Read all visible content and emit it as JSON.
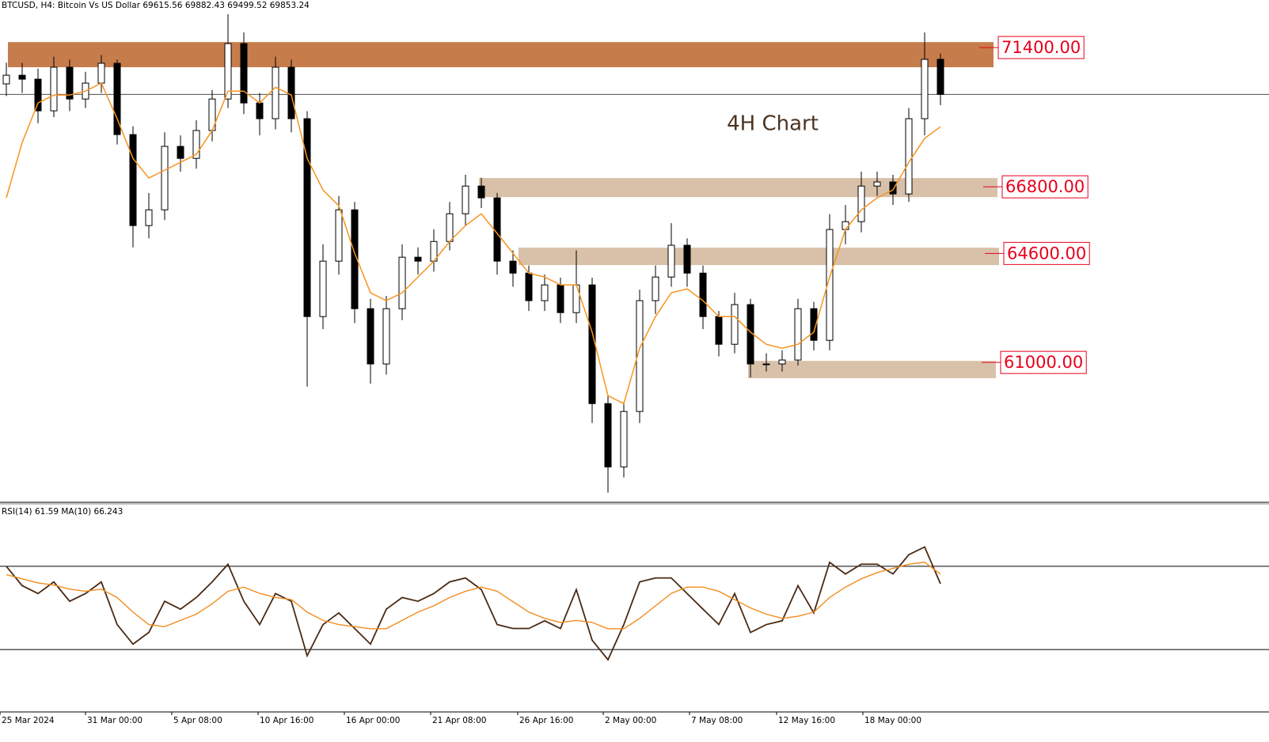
{
  "chart_data": {
    "type": "candlestick",
    "title": "BTCUSD, H4:",
    "subtitle": "Bitcoin Vs US Dollar",
    "quote": [
      69615.56,
      69882.43,
      69499.52,
      69853.24
    ],
    "annotation": "4H Chart",
    "ylim": [
      56380,
      72970
    ],
    "open": [
      70200,
      70485,
      70355,
      69310,
      70750,
      69700,
      70225,
      70880,
      68525,
      65520,
      66040,
      68135,
      67740,
      68660,
      69700,
      71530,
      69570,
      69050,
      70750,
      69050,
      62515,
      64345,
      66040,
      62775,
      60950,
      62775,
      64475,
      64345,
      64995,
      65910,
      66825,
      66435,
      64345,
      63950,
      63040,
      63560,
      62645,
      63560,
      59640,
      57550,
      59380,
      63040,
      63820,
      64870,
      63950,
      62515,
      61600,
      62910,
      60950,
      60950,
      61080,
      62775,
      61730,
      65390,
      65650,
      66825,
      66960,
      66565,
      69050,
      71010
    ],
    "high": [
      70900,
      70900,
      70700,
      71100,
      71000,
      70600,
      71150,
      71000,
      68800,
      66600,
      68600,
      68500,
      69000,
      70000,
      72500,
      71900,
      69900,
      71100,
      71000,
      69300,
      64900,
      66500,
      66300,
      63100,
      63200,
      64900,
      64800,
      65400,
      66300,
      67200,
      67100,
      66600,
      64700,
      64200,
      63900,
      63800,
      64700,
      63800,
      59900,
      59700,
      63400,
      64200,
      65600,
      65100,
      64200,
      62700,
      63300,
      63100,
      61300,
      61400,
      63100,
      63000,
      65900,
      66200,
      67300,
      67300,
      67200,
      69400,
      71900,
      71200
    ],
    "low": [
      69800,
      69900,
      68900,
      69100,
      69300,
      69400,
      69900,
      68200,
      64800,
      65100,
      65700,
      67300,
      67400,
      68300,
      69400,
      69200,
      68500,
      68700,
      68600,
      60200,
      62100,
      63900,
      62300,
      60300,
      60600,
      62400,
      63900,
      64000,
      64700,
      65500,
      66100,
      63900,
      63500,
      62700,
      62700,
      62300,
      62300,
      59000,
      56700,
      57200,
      59000,
      62600,
      63500,
      63500,
      62100,
      61200,
      61300,
      60500,
      60700,
      60700,
      60900,
      61400,
      61400,
      64900,
      65300,
      66500,
      66200,
      66300,
      68500,
      69500
    ],
    "close": [
      70485,
      70355,
      69310,
      70750,
      69700,
      70225,
      70880,
      68525,
      65520,
      66040,
      68135,
      67740,
      68660,
      69700,
      71530,
      69570,
      69050,
      70750,
      69050,
      62515,
      64345,
      66040,
      62775,
      60950,
      62775,
      64475,
      64345,
      64995,
      65910,
      66825,
      66435,
      64345,
      63950,
      63040,
      63560,
      62645,
      63560,
      59640,
      57550,
      59380,
      63040,
      63820,
      64870,
      63950,
      62515,
      61600,
      62910,
      60950,
      60950,
      61080,
      62775,
      61730,
      65390,
      65650,
      66825,
      66960,
      66565,
      69050,
      71010,
      69853
    ],
    "ma": {
      "color": "#f7931e",
      "values": [
        66435,
        68265,
        69570,
        69830,
        69830,
        69960,
        70225,
        69050,
        67740,
        67090,
        67350,
        67610,
        67870,
        68660,
        69960,
        69960,
        69570,
        70090,
        69830,
        67740,
        66695,
        66175,
        64605,
        63300,
        63040,
        63300,
        63820,
        64345,
        64995,
        65520,
        65910,
        65260,
        64605,
        63950,
        63820,
        63560,
        63560,
        62000,
        59900,
        59640,
        61470,
        62515,
        63300,
        63430,
        63040,
        62515,
        62515,
        62000,
        61600,
        61470,
        61600,
        62000,
        63820,
        65390,
        66040,
        66435,
        66695,
        67610,
        68400,
        68785
      ]
    },
    "zones": [
      {
        "level": {
          "value": 71400,
          "label": "71400.00"
        },
        "top": 71580,
        "bottom": 70750,
        "color": "#c67c4b"
      },
      {
        "level": {
          "value": 66800,
          "label": "66800.00"
        },
        "top": 67090,
        "bottom": 66460,
        "color": "#d8c1a8"
      },
      {
        "level": {
          "value": 64600,
          "label": "64600.00"
        },
        "top": 64790,
        "bottom": 64215,
        "color": "#d8c1a8"
      },
      {
        "level": {
          "value": 61000,
          "label": "61000.00"
        },
        "top": 61050,
        "bottom": 60480,
        "color": "#d8c1a8"
      }
    ],
    "xticks": [
      {
        "value": -0.4,
        "label": "25 Mar 2024"
      },
      {
        "value": 5,
        "label": "31 Mar 00:00"
      },
      {
        "value": 10.45,
        "label": "5 Apr 08:00"
      },
      {
        "value": 15.9,
        "label": "10 Apr 16:00"
      },
      {
        "value": 21.35,
        "label": "16 Apr 00:00"
      },
      {
        "value": 26.8,
        "label": "21 Apr 08:00"
      },
      {
        "value": 32.3,
        "label": "26 Apr 16:00"
      },
      {
        "value": 37.7,
        "label": "2 May 00:00"
      },
      {
        "value": 43.15,
        "label": "7 May 08:00"
      },
      {
        "value": 48.65,
        "label": "12 May 16:00"
      },
      {
        "value": 54.1,
        "label": "18 May 00:00"
      }
    ],
    "rsi": {
      "name": "RSI(14)",
      "ma_name": "MA(10)",
      "ylim": [
        0,
        100
      ],
      "levels": [
        30,
        70
      ],
      "series": [
        {
          "name": "RSI(14)",
          "color": "#4a2a14",
          "values": [
            70,
            60.7,
            56.9,
            62.5,
            53.2,
            56.9,
            62.5,
            42,
            32.6,
            38.2,
            53.2,
            49.4,
            55,
            62.5,
            71,
            53.2,
            42,
            56.9,
            53.2,
            27,
            42,
            47.6,
            40.1,
            32.6,
            49.4,
            55,
            53.2,
            56.9,
            62.5,
            64.4,
            58.8,
            42,
            40.1,
            40.1,
            43.8,
            40.1,
            58.8,
            34.5,
            25.1,
            42,
            62.5,
            64.4,
            64.4,
            56.9,
            49.4,
            42,
            56.9,
            38.2,
            42,
            43.8,
            60.7,
            47.6,
            71.9,
            66.3,
            71,
            71,
            66.3,
            75.6,
            79.3,
            61.59
          ]
        },
        {
          "name": "MA(10)",
          "color": "#f28c1e",
          "values": [
            66,
            64,
            62,
            61,
            59,
            58,
            59,
            55,
            48,
            42,
            41,
            44,
            47,
            52,
            58,
            60,
            57,
            55,
            54,
            48,
            44,
            42,
            41,
            40,
            40,
            44,
            48,
            51,
            55,
            58,
            60,
            58,
            53,
            48,
            45,
            43,
            44,
            43,
            40,
            40,
            45,
            51,
            57,
            60,
            60,
            58,
            54,
            50,
            47,
            45,
            46,
            48,
            55,
            60,
            64,
            67,
            69,
            71,
            72,
            66.243
          ]
        }
      ]
    }
  }
}
